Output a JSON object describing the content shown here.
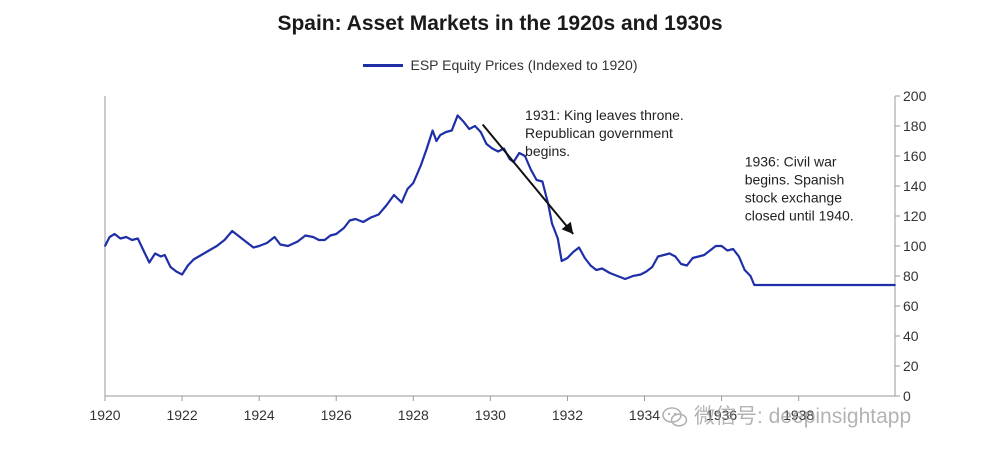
{
  "chart_data": {
    "type": "line",
    "title": "Spain: Asset Markets in the 1920s and 1930s",
    "xlabel": "",
    "ylabel": "",
    "x_ticks": [
      "1920",
      "1922",
      "1924",
      "1926",
      "1928",
      "1930",
      "1932",
      "1934",
      "1936",
      "1938"
    ],
    "y_ticks": [
      "0",
      "20",
      "40",
      "60",
      "80",
      "100",
      "120",
      "140",
      "160",
      "180",
      "200"
    ],
    "xlim": [
      1920,
      1940.5
    ],
    "ylim": [
      0,
      200
    ],
    "grid": false,
    "legend_position": "top-center",
    "series": [
      {
        "name": "ESP Equity Prices (Indexed to 1920)",
        "color": "#1f2fa8",
        "points": [
          [
            1920.0,
            100
          ],
          [
            1920.12,
            106
          ],
          [
            1920.25,
            108
          ],
          [
            1920.4,
            105
          ],
          [
            1920.55,
            106
          ],
          [
            1920.7,
            104
          ],
          [
            1920.85,
            105
          ],
          [
            1921.0,
            97
          ],
          [
            1921.15,
            89
          ],
          [
            1921.3,
            95
          ],
          [
            1921.45,
            93
          ],
          [
            1921.55,
            94
          ],
          [
            1921.7,
            86
          ],
          [
            1921.85,
            83
          ],
          [
            1922.0,
            81
          ],
          [
            1922.15,
            87
          ],
          [
            1922.3,
            91
          ],
          [
            1922.5,
            94
          ],
          [
            1922.7,
            97
          ],
          [
            1922.9,
            100
          ],
          [
            1923.1,
            104
          ],
          [
            1923.3,
            110
          ],
          [
            1923.5,
            106
          ],
          [
            1923.7,
            102
          ],
          [
            1923.85,
            99
          ],
          [
            1924.0,
            100
          ],
          [
            1924.2,
            102
          ],
          [
            1924.4,
            106
          ],
          [
            1924.55,
            101
          ],
          [
            1924.75,
            100
          ],
          [
            1925.0,
            103
          ],
          [
            1925.2,
            107
          ],
          [
            1925.4,
            106
          ],
          [
            1925.55,
            104
          ],
          [
            1925.7,
            104
          ],
          [
            1925.85,
            107
          ],
          [
            1926.0,
            108
          ],
          [
            1926.2,
            112
          ],
          [
            1926.35,
            117
          ],
          [
            1926.5,
            118
          ],
          [
            1926.7,
            116
          ],
          [
            1926.9,
            119
          ],
          [
            1927.1,
            121
          ],
          [
            1927.3,
            127
          ],
          [
            1927.5,
            134
          ],
          [
            1927.7,
            129
          ],
          [
            1927.85,
            138
          ],
          [
            1928.0,
            142
          ],
          [
            1928.2,
            154
          ],
          [
            1928.35,
            165
          ],
          [
            1928.5,
            177
          ],
          [
            1928.6,
            170
          ],
          [
            1928.7,
            174
          ],
          [
            1928.85,
            176
          ],
          [
            1929.0,
            177
          ],
          [
            1929.15,
            187
          ],
          [
            1929.3,
            183
          ],
          [
            1929.45,
            178
          ],
          [
            1929.6,
            180
          ],
          [
            1929.75,
            176
          ],
          [
            1929.9,
            168
          ],
          [
            1930.05,
            165
          ],
          [
            1930.2,
            163
          ],
          [
            1930.35,
            165
          ],
          [
            1930.5,
            158
          ],
          [
            1930.6,
            156
          ],
          [
            1930.75,
            162
          ],
          [
            1930.9,
            160
          ],
          [
            1931.05,
            151
          ],
          [
            1931.2,
            144
          ],
          [
            1931.35,
            143
          ],
          [
            1931.5,
            128
          ],
          [
            1931.6,
            115
          ],
          [
            1931.75,
            105
          ],
          [
            1931.85,
            90
          ],
          [
            1932.0,
            92
          ],
          [
            1932.15,
            96
          ],
          [
            1932.3,
            99
          ],
          [
            1932.45,
            92
          ],
          [
            1932.6,
            87
          ],
          [
            1932.75,
            84
          ],
          [
            1932.9,
            85
          ],
          [
            1933.1,
            82
          ],
          [
            1933.3,
            80
          ],
          [
            1933.5,
            78
          ],
          [
            1933.7,
            80
          ],
          [
            1933.9,
            81
          ],
          [
            1934.05,
            83
          ],
          [
            1934.2,
            86
          ],
          [
            1934.35,
            93
          ],
          [
            1934.5,
            94
          ],
          [
            1934.65,
            95
          ],
          [
            1934.8,
            93
          ],
          [
            1934.95,
            88
          ],
          [
            1935.1,
            87
          ],
          [
            1935.25,
            92
          ],
          [
            1935.4,
            93
          ],
          [
            1935.55,
            94
          ],
          [
            1935.7,
            97
          ],
          [
            1935.85,
            100
          ],
          [
            1936.0,
            100
          ],
          [
            1936.15,
            97
          ],
          [
            1936.3,
            98
          ],
          [
            1936.45,
            93
          ],
          [
            1936.6,
            84
          ],
          [
            1936.75,
            80
          ],
          [
            1936.85,
            74
          ],
          [
            1937.0,
            74
          ],
          [
            1938.0,
            74
          ],
          [
            1939.0,
            74
          ],
          [
            1940.0,
            74
          ],
          [
            1940.5,
            74
          ]
        ]
      }
    ],
    "annotations": [
      {
        "lines": [
          "1931: King leaves throne.",
          "Republican government",
          "begins."
        ],
        "anchor_x": 1930.9,
        "anchor_y": 184
      },
      {
        "lines": [
          "1936: Civil war",
          "begins. Spanish",
          "stock exchange",
          "closed until 1940."
        ],
        "anchor_x": 1936.6,
        "anchor_y": 153
      }
    ],
    "arrow": {
      "from": [
        1929.8,
        181
      ],
      "to": [
        1932.15,
        108
      ]
    }
  },
  "watermark": "微信号: deepinsightapp"
}
